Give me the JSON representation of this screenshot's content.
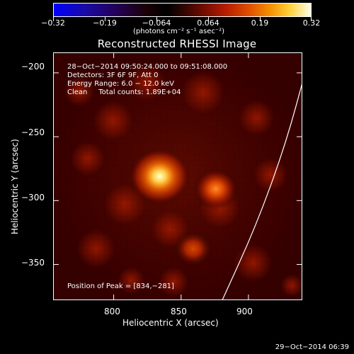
{
  "colorbar": {
    "tick_labels": [
      "−0.32",
      "−0.19",
      "−0.064",
      "0.064",
      "0.19",
      "0.32"
    ],
    "tick_values": [
      -0.32,
      -0.19,
      -0.064,
      0.064,
      0.19,
      0.32
    ],
    "unit_label": "(photons cm⁻² s⁻¹ asec⁻²)",
    "colors": [
      "#0000ff",
      "#1a0aa6",
      "#24005a",
      "#1b0006",
      "#000000",
      "#2d0500",
      "#6f0c00",
      "#b71d00",
      "#e04f00",
      "#f48f00",
      "#ffd23d",
      "#ffffe8"
    ]
  },
  "plot": {
    "title": "Reconstructed RHESSI Image",
    "annotation_lines": [
      "28−Oct−2014 09:50:24.000 to 09:51:08.000",
      "Detectors: 3F 6F 9F, Att 0",
      "Energy Range: 6.0 − 12.0 keV",
      "Clean     Total counts: 1.89E+04"
    ],
    "peak_text": "Position of Peak = [834,−281]"
  },
  "axes": {
    "x_label": "Heliocentric X (arcsec)",
    "y_label": "Heliocentric Y (arcsec)",
    "x_ticks": [
      800,
      850,
      900
    ],
    "y_ticks": [
      -200,
      -250,
      -300,
      -350
    ],
    "x_tick_labels": [
      "800",
      "850",
      "900"
    ],
    "y_tick_labels": [
      "−200",
      "−250",
      "−300",
      "−350"
    ],
    "x_range": [
      755,
      940
    ],
    "y_range": [
      -378,
      -184
    ]
  },
  "footer": {
    "timestamp": "29−Oct−2014 06:39"
  },
  "chart_data": {
    "type": "heatmap",
    "title": "Reconstructed RHESSI Image",
    "xlabel": "Heliocentric X (arcsec)",
    "ylabel": "Heliocentric Y (arcsec)",
    "xlim": [
      755,
      940
    ],
    "ylim": [
      -378,
      -184
    ],
    "colorbar": {
      "label": "(photons cm⁻² s⁻¹ asec⁻²)",
      "ticks": [
        -0.32,
        -0.19,
        -0.064,
        0.064,
        0.19,
        0.32
      ]
    },
    "sources": [
      {
        "x": 834,
        "y": -281,
        "intensity": 1.0
      },
      {
        "x": 876,
        "y": -291,
        "intensity": 0.5
      },
      {
        "x": 859,
        "y": -338,
        "intensity": 0.34
      }
    ],
    "limb_curve": [
      {
        "x": 944,
        "y": -194
      },
      {
        "x": 928,
        "y": -256
      },
      {
        "x": 906,
        "y": -320
      },
      {
        "x": 881,
        "y": -378
      }
    ]
  }
}
